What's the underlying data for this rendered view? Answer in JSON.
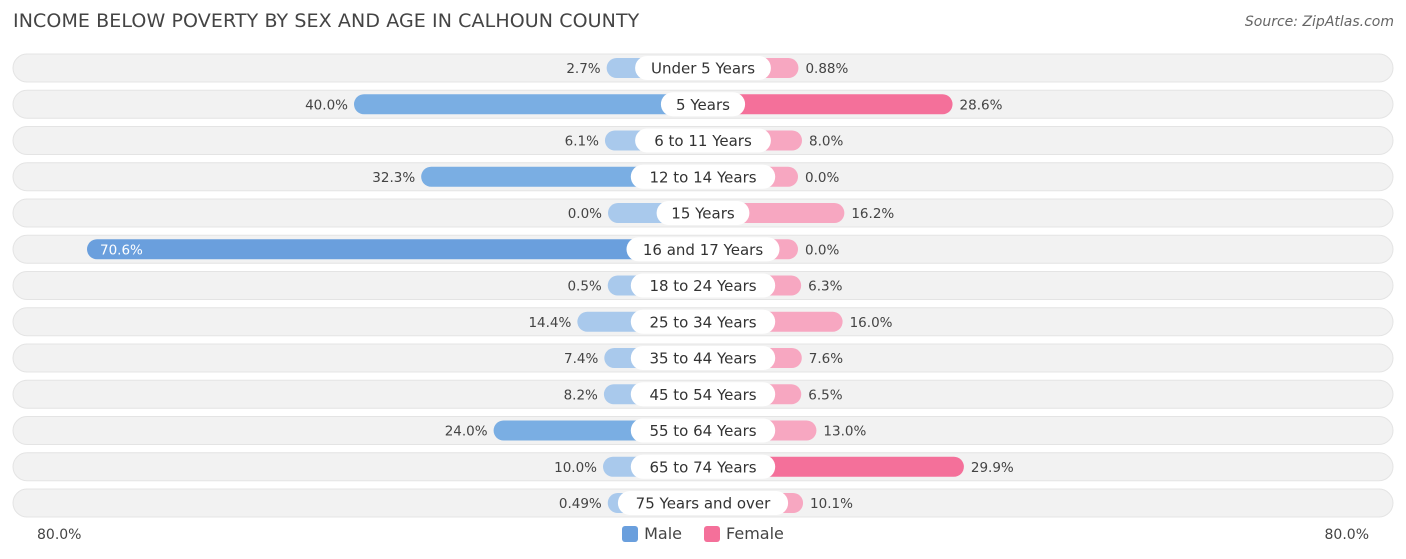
{
  "header": {
    "title": "INCOME BELOW POVERTY BY SEX AND AGE IN CALHOUN COUNTY",
    "source": "Source: ZipAtlas.com"
  },
  "colors": {
    "male": "#7aaee3",
    "male_light": "#a9c9ec",
    "female": "#f4709a",
    "female_light": "#f7a7c1",
    "row_bg": "#f2f2f2"
  },
  "chart_data": {
    "type": "bar",
    "orientation": "horizontal-diverging",
    "title": "INCOME BELOW POVERTY BY SEX AND AGE IN CALHOUN COUNTY",
    "categories": [
      "Under 5 Years",
      "5 Years",
      "6 to 11 Years",
      "12 to 14 Years",
      "15 Years",
      "16 and 17 Years",
      "18 to 24 Years",
      "25 to 34 Years",
      "35 to 44 Years",
      "45 to 54 Years",
      "55 to 64 Years",
      "65 to 74 Years",
      "75 Years and over"
    ],
    "series": [
      {
        "name": "Male",
        "values": [
          2.7,
          40.0,
          6.1,
          32.3,
          0.0,
          70.6,
          0.5,
          14.4,
          7.4,
          8.2,
          24.0,
          10.0,
          0.49
        ],
        "labels": [
          "2.7%",
          "40.0%",
          "6.1%",
          "32.3%",
          "0.0%",
          "70.6%",
          "0.5%",
          "14.4%",
          "7.4%",
          "8.2%",
          "24.0%",
          "10.0%",
          "0.49%"
        ]
      },
      {
        "name": "Female",
        "values": [
          0.88,
          28.6,
          8.0,
          0.0,
          16.2,
          0.0,
          6.3,
          16.0,
          7.6,
          6.5,
          13.0,
          29.9,
          10.1
        ],
        "labels": [
          "0.88%",
          "28.6%",
          "8.0%",
          "0.0%",
          "16.2%",
          "0.0%",
          "6.3%",
          "16.0%",
          "7.6%",
          "6.5%",
          "13.0%",
          "29.9%",
          "10.1%"
        ]
      }
    ],
    "xlim": [
      -80,
      80
    ],
    "axis_labels": {
      "left": "80.0%",
      "right": "80.0%"
    },
    "legend": "bottom-center"
  }
}
